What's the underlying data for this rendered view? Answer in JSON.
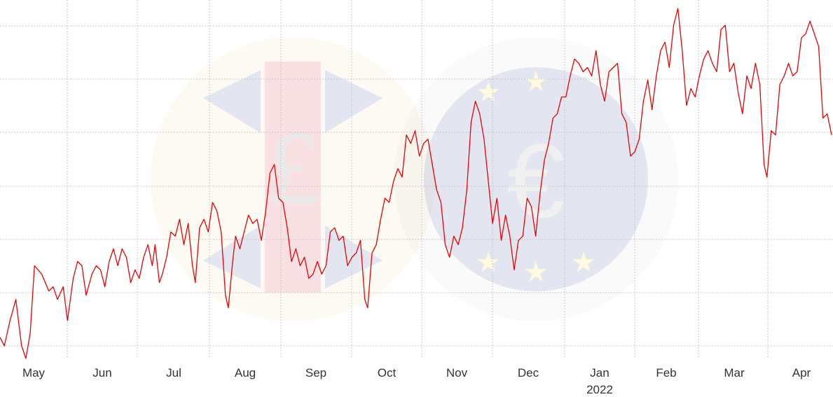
{
  "chart_data": {
    "type": "line",
    "title": "",
    "xlabel": "",
    "ylabel": "",
    "x_ticks": [
      "May",
      "Jun",
      "Jul",
      "Aug",
      "Sep",
      "Oct",
      "Nov",
      "Dec",
      "Jan",
      "Feb",
      "Mar",
      "Apr"
    ],
    "year_label": "2022",
    "grid": true,
    "line_color": "#ee0000",
    "grid_color": "#c8c8c8",
    "watermark_icons": [
      "pound-coin-icon",
      "euro-coin-icon"
    ],
    "y_gridlines": 7,
    "series": [
      {
        "values": [
          [
            0,
            1.7
          ],
          [
            3,
            1.5
          ],
          [
            7,
            2.1
          ],
          [
            11,
            2.6
          ],
          [
            15,
            1.5
          ],
          [
            18,
            1.2
          ],
          [
            21,
            1.8
          ],
          [
            24,
            3.4
          ],
          [
            29,
            3.2
          ],
          [
            34,
            2.8
          ],
          [
            37,
            2.9
          ],
          [
            40,
            2.6
          ],
          [
            44,
            2.9
          ],
          [
            47,
            2.1
          ],
          [
            51,
            3.1
          ],
          [
            54,
            3.5
          ],
          [
            57,
            3.4
          ],
          [
            60,
            2.7
          ],
          [
            64,
            3.2
          ],
          [
            67,
            3.4
          ],
          [
            70,
            3.3
          ],
          [
            73,
            2.9
          ],
          [
            76,
            3.5
          ],
          [
            79,
            3.8
          ],
          [
            82,
            3.4
          ],
          [
            85,
            3.8
          ],
          [
            88,
            3.6
          ],
          [
            91,
            3.0
          ],
          [
            94,
            3.3
          ],
          [
            97,
            3.1
          ],
          [
            100,
            3.6
          ],
          [
            103,
            3.9
          ],
          [
            106,
            3.4
          ],
          [
            108,
            3.9
          ],
          [
            111,
            3.0
          ],
          [
            113,
            3.2
          ],
          [
            116,
            3.6
          ],
          [
            119,
            4.2
          ],
          [
            122,
            4.1
          ],
          [
            125,
            4.5
          ],
          [
            128,
            3.9
          ],
          [
            131,
            4.4
          ],
          [
            134,
            3.4
          ],
          [
            136,
            3.0
          ],
          [
            139,
            4.3
          ],
          [
            142,
            4.5
          ],
          [
            145,
            4.2
          ],
          [
            148,
            4.9
          ],
          [
            151,
            4.7
          ],
          [
            154,
            4.2
          ],
          [
            157,
            2.7
          ],
          [
            159,
            2.4
          ],
          [
            162,
            3.5
          ],
          [
            164,
            4.1
          ],
          [
            167,
            3.8
          ],
          [
            170,
            4.2
          ],
          [
            173,
            4.6
          ],
          [
            176,
            4.4
          ],
          [
            179,
            4.5
          ],
          [
            182,
            4.0
          ],
          [
            185,
            4.7
          ],
          [
            188,
            5.6
          ],
          [
            191,
            5.8
          ],
          [
            194,
            5.0
          ],
          [
            197,
            4.9
          ],
          [
            200,
            4.3
          ],
          [
            203,
            3.5
          ],
          [
            206,
            3.8
          ],
          [
            209,
            3.4
          ],
          [
            212,
            3.6
          ],
          [
            215,
            3.1
          ],
          [
            218,
            3.2
          ],
          [
            221,
            3.5
          ],
          [
            224,
            3.2
          ],
          [
            227,
            3.4
          ],
          [
            230,
            4.2
          ],
          [
            233,
            4.3
          ],
          [
            236,
            4.0
          ],
          [
            239,
            4.1
          ],
          [
            242,
            3.4
          ],
          [
            245,
            3.6
          ],
          [
            248,
            3.7
          ],
          [
            251,
            4.0
          ],
          [
            254,
            2.6
          ],
          [
            256,
            2.4
          ],
          [
            259,
            3.7
          ],
          [
            262,
            3.9
          ],
          [
            265,
            4.5
          ],
          [
            268,
            5.0
          ],
          [
            271,
            4.9
          ],
          [
            274,
            5.4
          ],
          [
            277,
            5.7
          ],
          [
            280,
            5.5
          ],
          [
            283,
            6.5
          ],
          [
            286,
            6.3
          ],
          [
            289,
            6.6
          ],
          [
            292,
            6.0
          ],
          [
            295,
            6.3
          ],
          [
            298,
            6.4
          ],
          [
            301,
            5.8
          ],
          [
            304,
            5.2
          ],
          [
            307,
            4.9
          ],
          [
            310,
            3.9
          ],
          [
            313,
            3.6
          ],
          [
            316,
            4.1
          ],
          [
            319,
            3.9
          ],
          [
            322,
            4.3
          ],
          [
            325,
            5.2
          ],
          [
            328,
            6.8
          ],
          [
            331,
            7.3
          ],
          [
            334,
            7.0
          ],
          [
            337,
            6.4
          ],
          [
            340,
            5.4
          ],
          [
            343,
            4.4
          ],
          [
            346,
            5.0
          ],
          [
            349,
            4.0
          ],
          [
            352,
            4.6
          ],
          [
            355,
            4.1
          ],
          [
            358,
            3.3
          ],
          [
            361,
            4.0
          ],
          [
            364,
            4.1
          ],
          [
            367,
            5.0
          ],
          [
            370,
            4.8
          ],
          [
            373,
            4.1
          ],
          [
            376,
            5.1
          ],
          [
            379,
            5.9
          ],
          [
            382,
            6.3
          ],
          [
            385,
            6.9
          ],
          [
            388,
            7.0
          ],
          [
            391,
            7.4
          ],
          [
            394,
            7.4
          ],
          [
            397,
            7.9
          ],
          [
            400,
            8.3
          ],
          [
            403,
            8.2
          ],
          [
            406,
            8.0
          ],
          [
            409,
            8.1
          ],
          [
            412,
            7.9
          ],
          [
            415,
            8.5
          ],
          [
            418,
            7.7
          ],
          [
            421,
            7.3
          ],
          [
            424,
            8.0
          ],
          [
            427,
            8.1
          ],
          [
            430,
            8.2
          ],
          [
            433,
            7.0
          ],
          [
            436,
            6.8
          ],
          [
            439,
            6.0
          ],
          [
            442,
            6.1
          ],
          [
            445,
            6.4
          ],
          [
            448,
            7.3
          ],
          [
            451,
            7.8
          ],
          [
            454,
            7.1
          ],
          [
            457,
            7.9
          ],
          [
            460,
            8.5
          ],
          [
            463,
            8.7
          ],
          [
            466,
            8.1
          ],
          [
            469,
            9.1
          ],
          [
            472,
            9.5
          ],
          [
            475,
            8.5
          ],
          [
            478,
            7.2
          ],
          [
            481,
            7.6
          ],
          [
            484,
            7.4
          ],
          [
            487,
            7.9
          ],
          [
            490,
            8.3
          ],
          [
            493,
            8.5
          ],
          [
            496,
            8.2
          ],
          [
            499,
            8.0
          ],
          [
            502,
            9.0
          ],
          [
            505,
            9.1
          ],
          [
            508,
            8.0
          ],
          [
            511,
            8.2
          ],
          [
            514,
            7.5
          ],
          [
            517,
            7.0
          ],
          [
            520,
            7.9
          ],
          [
            523,
            7.6
          ],
          [
            526,
            8.2
          ],
          [
            529,
            7.7
          ],
          [
            532,
            5.8
          ],
          [
            534,
            5.5
          ],
          [
            537,
            6.6
          ],
          [
            540,
            6.5
          ],
          [
            543,
            7.7
          ],
          [
            546,
            7.9
          ],
          [
            549,
            8.2
          ],
          [
            552,
            7.9
          ],
          [
            555,
            8.0
          ],
          [
            558,
            8.8
          ],
          [
            561,
            8.9
          ],
          [
            564,
            9.2
          ],
          [
            567,
            8.9
          ],
          [
            570,
            8.6
          ],
          [
            573,
            6.9
          ],
          [
            576,
            7.0
          ],
          [
            579,
            6.5
          ]
        ]
      }
    ],
    "x_range": [
      0,
      580
    ],
    "ylim": [
      1.2,
      9.7
    ]
  }
}
